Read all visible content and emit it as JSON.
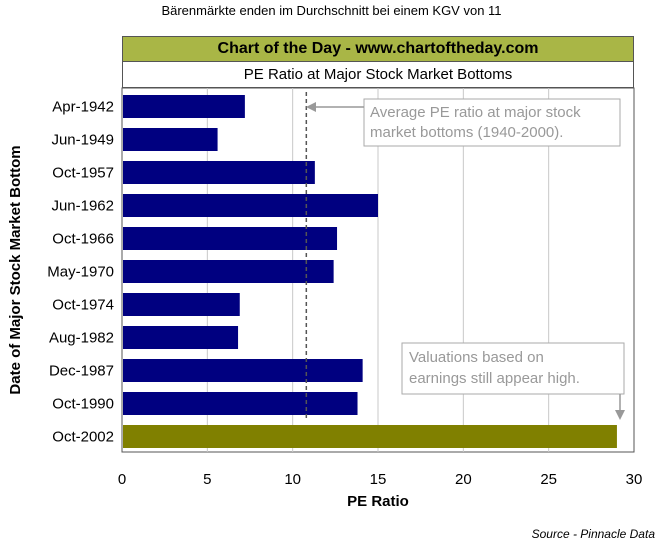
{
  "page": {
    "caption": "Bärenmärkte enden im Durchschnitt bei einem KGV von 11",
    "banner": "Chart of the Day - www.chartoftheday.com",
    "source": "Source - Pinnacle Data"
  },
  "chart_data": {
    "type": "bar",
    "orientation": "horizontal",
    "title": "PE Ratio at Major Stock Market Bottoms",
    "xlabel": "PE Ratio",
    "ylabel": "Date of Major Stock Market Bottom",
    "xlim": [
      0,
      30
    ],
    "xticks": [
      "0",
      "5",
      "10",
      "15",
      "20",
      "25",
      "30"
    ],
    "grid": "vertical",
    "categories": [
      "Apr-1942",
      "Jun-1949",
      "Oct-1957",
      "Jun-1962",
      "Oct-1966",
      "May-1970",
      "Oct-1974",
      "Aug-1982",
      "Dec-1987",
      "Oct-1990",
      "Oct-2002"
    ],
    "values": [
      7.2,
      5.6,
      11.3,
      15.0,
      12.6,
      12.4,
      6.9,
      6.8,
      14.1,
      13.8,
      29.0
    ],
    "bar_colors": [
      "#000080",
      "#000080",
      "#000080",
      "#000080",
      "#000080",
      "#000080",
      "#000080",
      "#000080",
      "#000080",
      "#000080",
      "#808000"
    ],
    "reference_line": {
      "value": 10.8,
      "style": "dashed"
    },
    "annotations": [
      {
        "text": "Average PE ratio at major stock market bottoms (1940-2000).",
        "lines": [
          "Average PE ratio at major stock",
          "market bottoms (1940-2000)."
        ]
      },
      {
        "text": "Valuations based on earnings still appear high.",
        "lines": [
          "Valuations based on",
          "earnings still appear high."
        ]
      }
    ]
  }
}
